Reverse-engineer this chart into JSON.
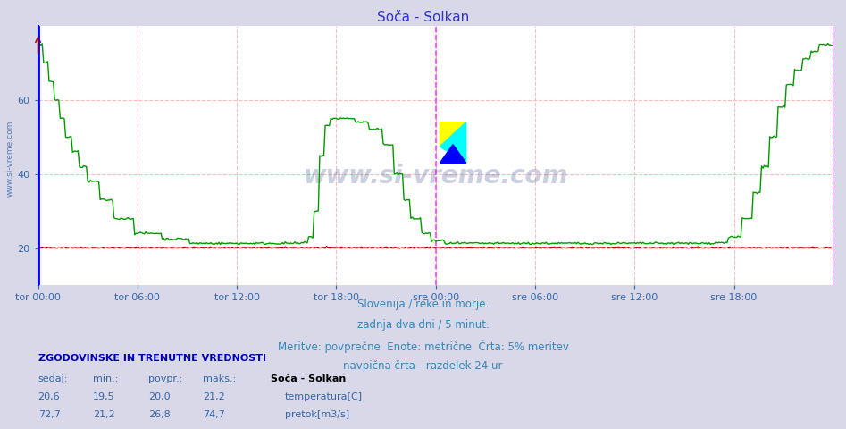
{
  "title": "Soča - Solkan",
  "title_color": "#3333cc",
  "bg_color": "#d8d8e8",
  "plot_bg_color": "#ffffff",
  "ylabel_color": "#3366aa",
  "watermark": "www.si-vreme.com",
  "watermark_color": "#334488",
  "watermark_alpha": 0.25,
  "xticklabels": [
    "tor 00:00",
    "tor 06:00",
    "tor 12:00",
    "tor 18:00",
    "sre 00:00",
    "sre 06:00",
    "sre 12:00",
    "sre 18:00"
  ],
  "yticks": [
    20,
    40,
    60
  ],
  "ymin": 10,
  "ymax": 80,
  "n_points": 576,
  "temp_color": "#bb0000",
  "flow_color": "#009900",
  "border_color": "#0000ee",
  "grid_h_color": "#ffbbbb",
  "grid_v_color": "#ffbbbb",
  "midnight_line_color": "#ff44ff",
  "footer_lines": [
    "Slovenija / reke in morje.",
    "zadnja dva dni / 5 minut.",
    "Meritve: povprečne  Enote: metrične  Črta: 5% meritev",
    "navpična črta - razdelek 24 ur"
  ],
  "footer_color": "#3388bb",
  "footer_fontsize": 9,
  "legend_title": "Soča - Solkan",
  "legend_title_color": "#000000",
  "legend_color": "#3366aa",
  "table_header_color": "#0000bb",
  "table_header": "ZGODOVINSKE IN TRENUTNE VREDNOSTI",
  "table_cols": [
    "sedaj:",
    "min.:",
    "povpr.:",
    "maks.:"
  ],
  "temp_row": [
    "20,6",
    "19,5",
    "20,0",
    "21,2"
  ],
  "flow_row": [
    "72,7",
    "21,2",
    "26,8",
    "74,7"
  ],
  "temp_label": "temperatura[C]",
  "flow_label": "pretok[m3/s]",
  "sidebar_text": "www.si-vreme.com",
  "sidebar_color": "#3366aa"
}
